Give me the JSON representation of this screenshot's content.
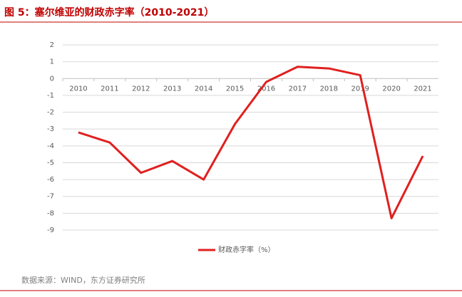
{
  "title": "图 5：塞尔维亚的财政赤字率（2010-2021）",
  "source": "数据来源：WIND，东方证券研究所",
  "chart_data": {
    "type": "line",
    "categories": [
      "2010",
      "2011",
      "2012",
      "2013",
      "2014",
      "2015",
      "2016",
      "2017",
      "2018",
      "2019",
      "2020",
      "2021"
    ],
    "series": [
      {
        "name": "财政赤字率（%）",
        "color": "#e02020",
        "values": [
          -3.2,
          -3.8,
          -5.6,
          -4.9,
          -6.0,
          -2.7,
          -0.2,
          0.7,
          0.6,
          0.2,
          -8.3,
          -4.6
        ]
      }
    ],
    "ylim": [
      -9,
      2
    ],
    "yticks": [
      -9,
      -8,
      -7,
      -6,
      -5,
      -4,
      -3,
      -2,
      -1,
      0,
      1,
      2
    ],
    "grid": true,
    "legend": "bottom"
  }
}
